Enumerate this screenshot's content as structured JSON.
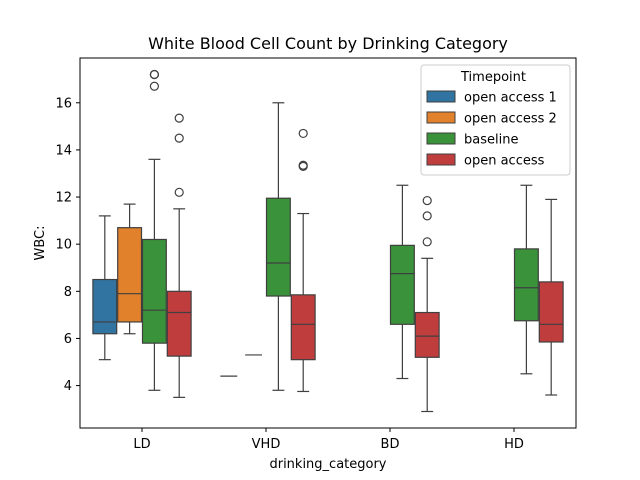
{
  "chart_data": {
    "type": "box",
    "title": "White Blood Cell Count by Drinking Category",
    "xlabel": "drinking_category",
    "ylabel": "WBC:",
    "categories": [
      "LD",
      "VHD",
      "BD",
      "HD"
    ],
    "ylim": [
      2.2,
      17.9
    ],
    "yticks": [
      4,
      6,
      8,
      10,
      12,
      14,
      16
    ],
    "grid": false,
    "legend": {
      "title": "Timepoint",
      "placement": "top-right",
      "entries": [
        "open access 1",
        "open access 2",
        "baseline",
        "open access"
      ]
    },
    "series": [
      {
        "name": "open access 1",
        "color": "#3274a1",
        "boxes": [
          {
            "category": "LD",
            "whisker_low": 5.1,
            "q1": 6.2,
            "median": 6.7,
            "q3": 8.5,
            "whisker_high": 11.2,
            "outliers": []
          }
        ]
      },
      {
        "name": "open access 2",
        "color": "#e1812c",
        "boxes": [
          {
            "category": "LD",
            "whisker_low": 6.2,
            "q1": 6.7,
            "median": 7.9,
            "q3": 10.7,
            "whisker_high": 11.7,
            "outliers": []
          }
        ]
      },
      {
        "name": "baseline",
        "color": "#3a923a",
        "boxes": [
          {
            "category": "LD",
            "whisker_low": 3.8,
            "q1": 5.8,
            "median": 7.2,
            "q3": 10.2,
            "whisker_high": 13.6,
            "outliers": [
              16.7,
              17.2,
              17.2
            ]
          },
          {
            "category": "VHD",
            "whisker_low": 3.8,
            "q1": 7.8,
            "median": 9.2,
            "q3": 11.95,
            "whisker_high": 16.0,
            "outliers": []
          },
          {
            "category": "BD",
            "whisker_low": 4.3,
            "q1": 6.6,
            "median": 8.75,
            "q3": 9.95,
            "whisker_high": 12.5,
            "outliers": []
          },
          {
            "category": "HD",
            "whisker_low": 4.5,
            "q1": 6.75,
            "median": 8.15,
            "q3": 9.8,
            "whisker_high": 12.5,
            "outliers": []
          }
        ]
      },
      {
        "name": "open access",
        "color": "#c03d3e",
        "boxes": [
          {
            "category": "LD",
            "whisker_low": 3.5,
            "q1": 5.25,
            "median": 7.1,
            "q3": 8.0,
            "whisker_high": 11.5,
            "outliers": [
              12.2,
              14.5,
              15.35
            ]
          },
          {
            "category": "VHD",
            "whisker_low": 3.75,
            "q1": 5.1,
            "median": 6.6,
            "q3": 7.85,
            "whisker_high": 11.3,
            "outliers": [
              13.3,
              13.35,
              14.7
            ]
          },
          {
            "category": "BD",
            "whisker_low": 2.9,
            "q1": 5.2,
            "median": 6.1,
            "q3": 7.1,
            "whisker_high": 9.4,
            "outliers": [
              10.1,
              11.2,
              11.85
            ]
          },
          {
            "category": "HD",
            "whisker_low": 3.6,
            "q1": 5.85,
            "median": 6.6,
            "q3": 8.4,
            "whisker_high": 11.9,
            "outliers": []
          }
        ]
      }
    ],
    "flat_lines": [
      {
        "category": "VHD",
        "value": 4.4
      },
      {
        "category": "VHD",
        "value": 5.3
      }
    ]
  }
}
